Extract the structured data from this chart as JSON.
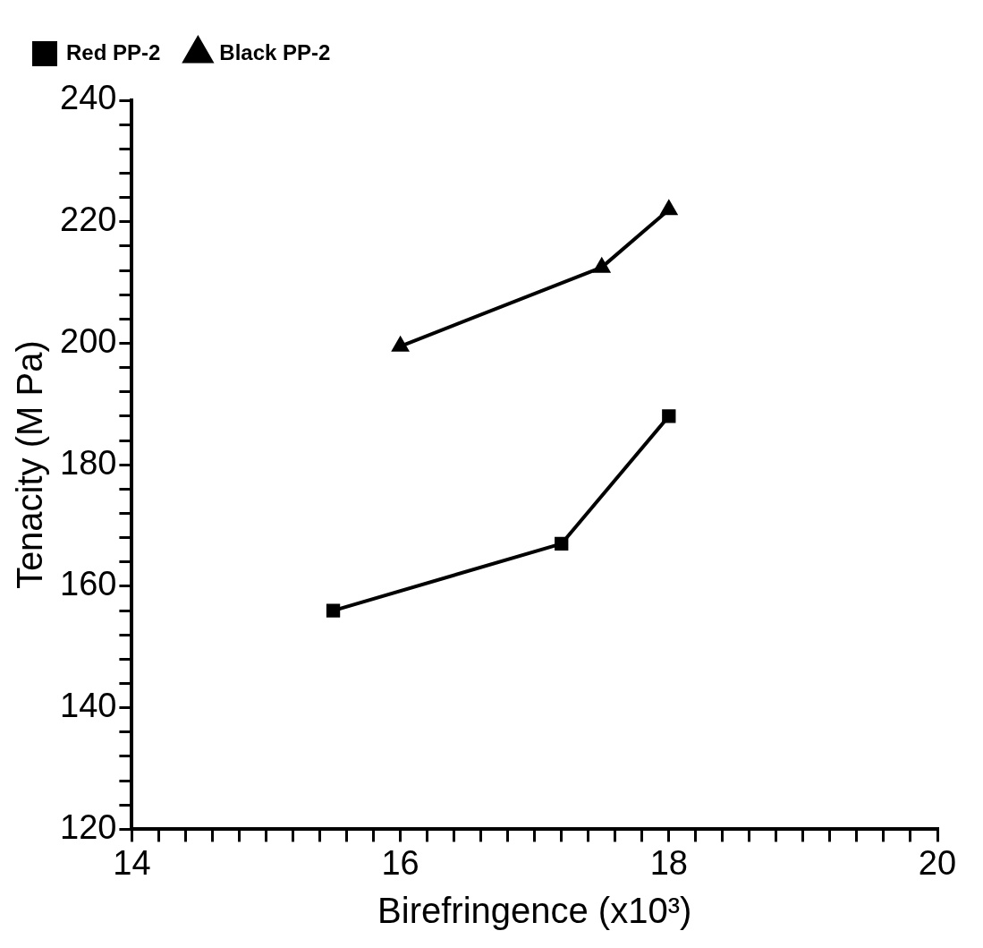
{
  "chart_data": {
    "type": "line",
    "xlabel": "Birefringence (x10³)",
    "ylabel": "Tenacity (M Pa)",
    "xlim": [
      14,
      20
    ],
    "ylim": [
      120,
      240
    ],
    "xticks": [
      14,
      {
        "value": 14.2,
        "label": null
      },
      {
        "value": 14.4,
        "label": null
      },
      {
        "value": 14.6,
        "label": null
      },
      {
        "value": 14.8,
        "label": null
      },
      {
        "value": 15,
        "label": null
      },
      {
        "value": 15.2,
        "label": null
      },
      {
        "value": 15.4,
        "label": null
      },
      {
        "value": 15.6,
        "label": null
      },
      {
        "value": 15.8,
        "label": null
      },
      16,
      {
        "value": 16.2,
        "label": null
      },
      {
        "value": 16.4,
        "label": null
      },
      {
        "value": 16.6,
        "label": null
      },
      {
        "value": 16.8,
        "label": null
      },
      {
        "value": 17,
        "label": null
      },
      {
        "value": 17.2,
        "label": null
      },
      {
        "value": 17.4,
        "label": null
      },
      {
        "value": 17.6,
        "label": null
      },
      {
        "value": 17.8,
        "label": null
      },
      18,
      {
        "value": 18.2,
        "label": null
      },
      {
        "value": 18.4,
        "label": null
      },
      {
        "value": 18.6,
        "label": null
      },
      {
        "value": 18.8,
        "label": null
      },
      {
        "value": 19,
        "label": null
      },
      {
        "value": 19.2,
        "label": null
      },
      {
        "value": 19.4,
        "label": null
      },
      {
        "value": 19.6,
        "label": null
      },
      {
        "value": 19.8,
        "label": null
      },
      20
    ],
    "yticks": [
      120,
      {
        "value": 124,
        "label": null
      },
      {
        "value": 128,
        "label": null
      },
      {
        "value": 132,
        "label": null
      },
      {
        "value": 136,
        "label": null
      },
      140,
      {
        "value": 144,
        "label": null
      },
      {
        "value": 148,
        "label": null
      },
      {
        "value": 152,
        "label": null
      },
      {
        "value": 156,
        "label": null
      },
      160,
      {
        "value": 164,
        "label": null
      },
      {
        "value": 168,
        "label": null
      },
      {
        "value": 172,
        "label": null
      },
      {
        "value": 176,
        "label": null
      },
      180,
      {
        "value": 184,
        "label": null
      },
      {
        "value": 188,
        "label": null
      },
      {
        "value": 192,
        "label": null
      },
      {
        "value": 196,
        "label": null
      },
      200,
      {
        "value": 204,
        "label": null
      },
      {
        "value": 208,
        "label": null
      },
      {
        "value": 212,
        "label": null
      },
      {
        "value": 216,
        "label": null
      },
      220,
      {
        "value": 224,
        "label": null
      },
      {
        "value": 228,
        "label": null
      },
      {
        "value": 232,
        "label": null
      },
      {
        "value": 236,
        "label": null
      },
      240
    ],
    "grid": false,
    "legend": "top left",
    "line_style": "solid",
    "series": [
      {
        "name": "Red PP-2",
        "color": "#000000",
        "marker": "square",
        "x": [
          15.5,
          17.2,
          18
        ],
        "values": [
          156,
          167,
          188
        ]
      },
      {
        "name": "Black PP-2",
        "color": "#000000",
        "marker": "triangle",
        "x": [
          16,
          17.5,
          18
        ],
        "values": [
          199.5,
          212.5,
          222
        ]
      }
    ]
  }
}
